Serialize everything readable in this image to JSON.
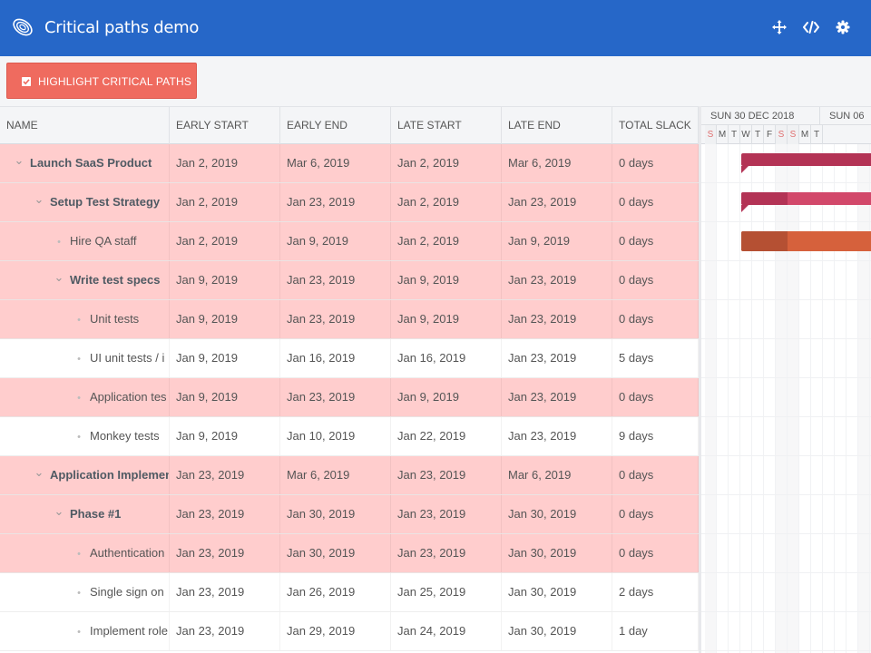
{
  "header": {
    "title": "Critical paths demo",
    "background": "#2667c8",
    "icons": [
      "logo-icon",
      "fullscreen-icon",
      "code-icon",
      "settings-icon"
    ]
  },
  "toolbar": {
    "highlight_label": "HIGHLIGHT CRITICAL PATHS",
    "highlight_checked": true,
    "button_color": "#ef6b5f"
  },
  "grid": {
    "columns": [
      "NAME",
      "EARLY START",
      "EARLY END",
      "LATE START",
      "LATE END",
      "TOTAL SLACK"
    ],
    "rows": [
      {
        "name": "Launch SaaS Product",
        "type": "parent",
        "depth": 0,
        "critical": true,
        "early_start": "Jan 2, 2019",
        "early_end": "Mar 6, 2019",
        "late_start": "Jan 2, 2019",
        "late_end": "Mar 6, 2019",
        "slack": "0 days"
      },
      {
        "name": "Setup Test Strategy",
        "type": "parent",
        "depth": 1,
        "critical": true,
        "early_start": "Jan 2, 2019",
        "early_end": "Jan 23, 2019",
        "late_start": "Jan 2, 2019",
        "late_end": "Jan 23, 2019",
        "slack": "0 days"
      },
      {
        "name": "Hire QA staff",
        "type": "leaf",
        "depth": 2,
        "critical": true,
        "early_start": "Jan 2, 2019",
        "early_end": "Jan 9, 2019",
        "late_start": "Jan 2, 2019",
        "late_end": "Jan 9, 2019",
        "slack": "0 days"
      },
      {
        "name": "Write test specs",
        "type": "parent",
        "depth": 2,
        "critical": true,
        "early_start": "Jan 9, 2019",
        "early_end": "Jan 23, 2019",
        "late_start": "Jan 9, 2019",
        "late_end": "Jan 23, 2019",
        "slack": "0 days"
      },
      {
        "name": "Unit tests",
        "type": "leaf",
        "depth": 3,
        "critical": true,
        "early_start": "Jan 9, 2019",
        "early_end": "Jan 23, 2019",
        "late_start": "Jan 9, 2019",
        "late_end": "Jan 23, 2019",
        "slack": "0 days"
      },
      {
        "name": "UI unit tests / i",
        "type": "leaf",
        "depth": 3,
        "critical": false,
        "early_start": "Jan 9, 2019",
        "early_end": "Jan 16, 2019",
        "late_start": "Jan 16, 2019",
        "late_end": "Jan 23, 2019",
        "slack": "5 days"
      },
      {
        "name": "Application tes",
        "type": "leaf",
        "depth": 3,
        "critical": true,
        "early_start": "Jan 9, 2019",
        "early_end": "Jan 23, 2019",
        "late_start": "Jan 9, 2019",
        "late_end": "Jan 23, 2019",
        "slack": "0 days"
      },
      {
        "name": "Monkey tests",
        "type": "leaf",
        "depth": 3,
        "critical": false,
        "early_start": "Jan 9, 2019",
        "early_end": "Jan 10, 2019",
        "late_start": "Jan 22, 2019",
        "late_end": "Jan 23, 2019",
        "slack": "9 days"
      },
      {
        "name": "Application Implement",
        "type": "parent",
        "depth": 1,
        "critical": true,
        "early_start": "Jan 23, 2019",
        "early_end": "Mar 6, 2019",
        "late_start": "Jan 23, 2019",
        "late_end": "Mar 6, 2019",
        "slack": "0 days"
      },
      {
        "name": "Phase #1",
        "type": "parent",
        "depth": 2,
        "critical": true,
        "early_start": "Jan 23, 2019",
        "early_end": "Jan 30, 2019",
        "late_start": "Jan 23, 2019",
        "late_end": "Jan 30, 2019",
        "slack": "0 days"
      },
      {
        "name": "Authentication",
        "type": "leaf",
        "depth": 3,
        "critical": true,
        "early_start": "Jan 23, 2019",
        "early_end": "Jan 30, 2019",
        "late_start": "Jan 23, 2019",
        "late_end": "Jan 30, 2019",
        "slack": "0 days"
      },
      {
        "name": "Single sign on",
        "type": "leaf",
        "depth": 3,
        "critical": false,
        "early_start": "Jan 23, 2019",
        "early_end": "Jan 26, 2019",
        "late_start": "Jan 25, 2019",
        "late_end": "Jan 30, 2019",
        "slack": "2 days"
      },
      {
        "name": "Implement role",
        "type": "leaf",
        "depth": 3,
        "critical": false,
        "early_start": "Jan 23, 2019",
        "early_end": "Jan 29, 2019",
        "late_start": "Jan 24, 2019",
        "late_end": "Jan 30, 2019",
        "slack": "1 day"
      }
    ]
  },
  "timeline": {
    "weeks": [
      "SUN 30 DEC 2018",
      "SUN 06"
    ],
    "days": [
      "S",
      "M",
      "T",
      "W",
      "T",
      "F",
      "S",
      "S",
      "M",
      "T"
    ],
    "weekend_days": [
      0,
      6,
      7
    ],
    "bars": [
      {
        "row": 0,
        "start_day": 3,
        "end_day": 20,
        "progress": 0,
        "color": "#b33355",
        "progress_color": "#b33355",
        "summary": true
      },
      {
        "row": 1,
        "start_day": 3,
        "end_day": 20,
        "progress": 0.23,
        "color": "#d2486a",
        "progress_color": "#b33355",
        "summary": true
      },
      {
        "row": 2,
        "start_day": 3,
        "end_day": 20,
        "progress": 0.23,
        "color": "#d6613c",
        "progress_color": "#b55033",
        "summary": false
      }
    ]
  },
  "colors": {
    "critical_row": "#ffcdcd",
    "normal_row": "#ffffff",
    "weekend_text": "#e07070"
  }
}
